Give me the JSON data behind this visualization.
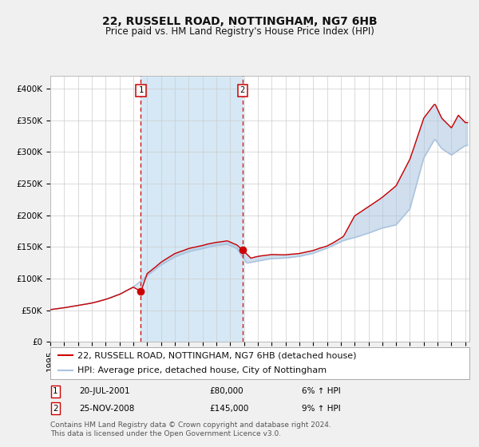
{
  "title": "22, RUSSELL ROAD, NOTTINGHAM, NG7 6HB",
  "subtitle": "Price paid vs. HM Land Registry's House Price Index (HPI)",
  "legend_line1": "22, RUSSELL ROAD, NOTTINGHAM, NG7 6HB (detached house)",
  "legend_line2": "HPI: Average price, detached house, City of Nottingham",
  "annotation1_text": "20-JUL-2001",
  "annotation1_amount": "£80,000",
  "annotation1_hpi": "6% ↑ HPI",
  "annotation2_text": "25-NOV-2008",
  "annotation2_amount": "£145,000",
  "annotation2_hpi": "9% ↑ HPI",
  "footnote1": "Contains HM Land Registry data © Crown copyright and database right 2024.",
  "footnote2": "This data is licensed under the Open Government Licence v3.0.",
  "hpi_color": "#aac4df",
  "price_color": "#cc0000",
  "dot_color": "#cc0000",
  "vline_color": "#cc0000",
  "shade_color": "#d6e8f5",
  "bg_color": "#f0f0f0",
  "plot_bg": "#ffffff",
  "grid_color": "#cccccc",
  "ylim": [
    0,
    420000
  ],
  "yticks": [
    0,
    50000,
    100000,
    150000,
    200000,
    250000,
    300000,
    350000,
    400000
  ],
  "ytick_labels": [
    "£0",
    "£50K",
    "£100K",
    "£150K",
    "£200K",
    "£250K",
    "£300K",
    "£350K",
    "£400K"
  ],
  "sale1_year_float": 2001.55,
  "sale1_price": 80000,
  "sale2_year_float": 2008.9,
  "sale2_price": 145000,
  "hpi_keypoints_x": [
    1995.0,
    1996.0,
    1997.0,
    1998.0,
    1999.0,
    2000.0,
    2001.0,
    2002.0,
    2003.0,
    2004.0,
    2005.0,
    2006.0,
    2007.0,
    2007.8,
    2008.5,
    2009.2,
    2010.0,
    2011.0,
    2012.0,
    2013.0,
    2014.0,
    2015.0,
    2015.5,
    2016.2,
    2017.0,
    2018.0,
    2019.0,
    2020.0,
    2021.0,
    2022.0,
    2022.8,
    2023.3,
    2024.0,
    2025.0
  ],
  "hpi_keypoints_y": [
    51000,
    54000,
    58000,
    62000,
    68000,
    76000,
    87000,
    105000,
    122000,
    135000,
    143000,
    148000,
    153000,
    155000,
    148000,
    125000,
    128000,
    132000,
    133000,
    135000,
    140000,
    148000,
    153000,
    160000,
    165000,
    172000,
    180000,
    185000,
    210000,
    290000,
    320000,
    305000,
    295000,
    310000
  ],
  "red_keypoints_x": [
    1995.0,
    1996.0,
    1997.0,
    1998.0,
    1999.0,
    2000.0,
    2001.0,
    2001.55,
    2002.0,
    2003.0,
    2004.0,
    2005.0,
    2006.0,
    2007.0,
    2007.8,
    2008.5,
    2008.9,
    2009.5,
    2010.0,
    2011.0,
    2012.0,
    2013.0,
    2014.0,
    2015.0,
    2015.5,
    2016.2,
    2017.0,
    2018.0,
    2019.0,
    2020.0,
    2021.0,
    2022.0,
    2022.8,
    2023.3,
    2024.0,
    2024.5,
    2025.0
  ],
  "red_keypoints_y": [
    51000,
    54000,
    58000,
    62000,
    68000,
    76000,
    87000,
    80000,
    108000,
    126000,
    140000,
    148000,
    153000,
    158000,
    160000,
    153000,
    145000,
    132000,
    135000,
    138000,
    138000,
    140000,
    145000,
    152000,
    158000,
    168000,
    200000,
    215000,
    230000,
    248000,
    290000,
    355000,
    378000,
    355000,
    340000,
    360000,
    348000
  ],
  "title_fontsize": 10,
  "subtitle_fontsize": 8.5,
  "tick_fontsize": 7.5,
  "legend_fontsize": 8,
  "footnote_fontsize": 6.5
}
